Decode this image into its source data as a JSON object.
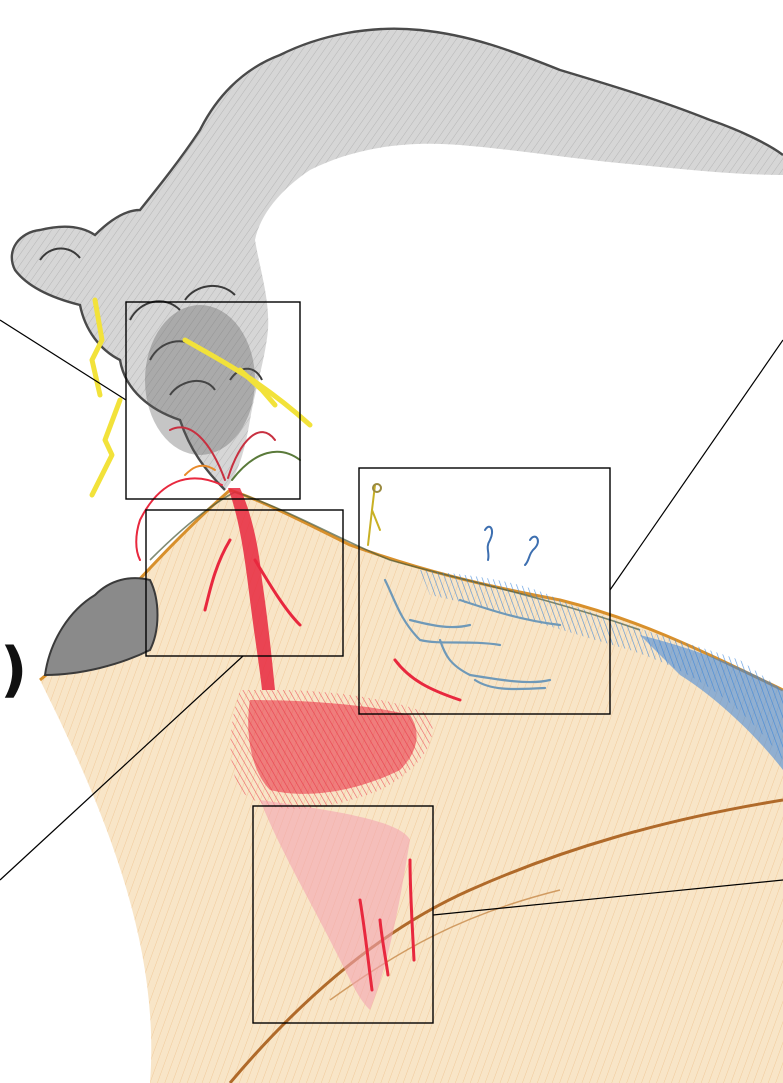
{
  "figure": {
    "stray_glyph": ")",
    "colors": {
      "plume_outline": "#4a4a4a",
      "plume_fill": "#cfcfcf",
      "plume_shadow": "#8a8a8a",
      "lightning": "#f2e23a",
      "magma": "#e8283e",
      "magma_light": "#f4a3b0",
      "ground_fill": "#f6dcb4",
      "ground_line": "#d8902c",
      "crust_line": "#b06a2a",
      "water": "#3a84d8",
      "water_line": "#6f99b8",
      "callout_line": "#000000",
      "stick_figure": "#c8b024",
      "stick_figure_blue": "#3d6fb0"
    },
    "callout_boxes": [
      {
        "name": "plume-vent-box"
      },
      {
        "name": "summit-conduit-box"
      },
      {
        "name": "water-flank-box"
      },
      {
        "name": "magma-chamber-box"
      }
    ]
  }
}
